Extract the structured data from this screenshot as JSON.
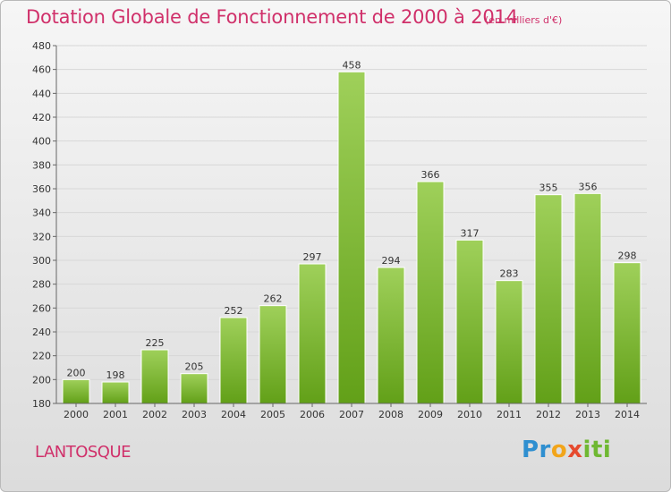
{
  "chart_data": {
    "type": "bar",
    "title": "Dotation Globale de Fonctionnement de 2000 à 2014",
    "subtitle": "(en milliers d'€)",
    "xlabel": "",
    "ylabel": "",
    "categories": [
      "2000",
      "2001",
      "2002",
      "2003",
      "2004",
      "2005",
      "2006",
      "2007",
      "2008",
      "2009",
      "2010",
      "2011",
      "2012",
      "2013",
      "2014"
    ],
    "values": [
      200,
      198,
      225,
      205,
      252,
      262,
      297,
      458,
      294,
      366,
      317,
      283,
      355,
      356,
      298
    ],
    "ylim": [
      180,
      480
    ],
    "yticks": [
      180,
      200,
      220,
      240,
      260,
      280,
      300,
      320,
      340,
      360,
      380,
      400,
      420,
      440,
      460,
      480
    ],
    "grid": true,
    "legend": "none"
  },
  "footer": {
    "place_name": "LANTOSQUE",
    "logo_text": "Proxiti"
  },
  "colors": {
    "title": "#d0306a",
    "bar_light": "#9fd05a",
    "bar_dark": "#62a018",
    "grid": "#d7d7d7",
    "axis": "#666666"
  }
}
